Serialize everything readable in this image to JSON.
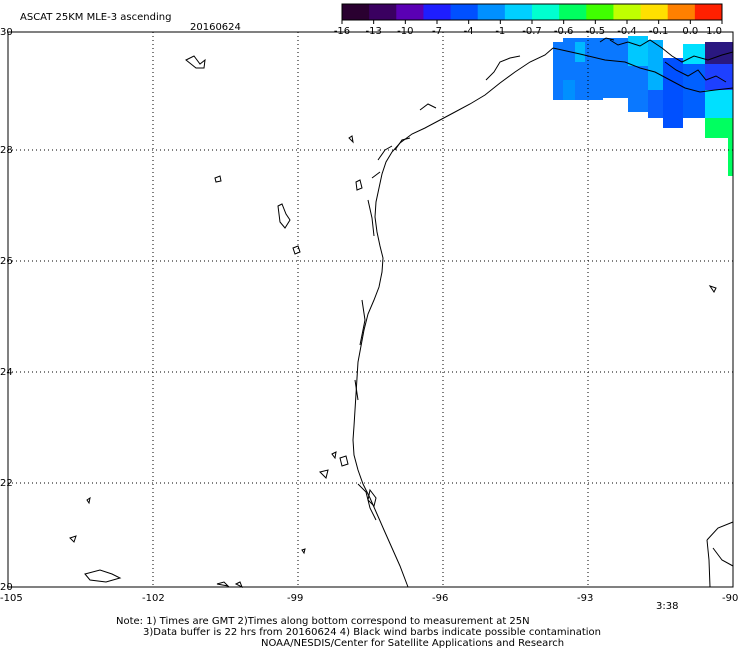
{
  "header": {
    "title": "ASCAT 25KM MLE-3 ascending",
    "date": "20160624"
  },
  "colorbar": {
    "labels": [
      "-16",
      "-13",
      "-10",
      "-7",
      "-4",
      "-1",
      "-0.7",
      "-0.6",
      "-0.5",
      "-0.4",
      "-0.1",
      "0.0",
      "1.0"
    ],
    "colors": [
      "#2a0030",
      "#3a0060",
      "#5a00b4",
      "#1e1eff",
      "#0050ff",
      "#0090ff",
      "#00d0ff",
      "#00ffd0",
      "#00ff60",
      "#40ff00",
      "#c0ff00",
      "#ffe000",
      "#ff8000",
      "#ff2000"
    ]
  },
  "map": {
    "lon_ticks": [
      "-105",
      "-102",
      "-99",
      "-96",
      "-93",
      "-90"
    ],
    "lat_ticks": [
      "30",
      "28",
      "26",
      "24",
      "22",
      "20"
    ],
    "lon_range": [
      -105,
      -90
    ],
    "lat_range": [
      20,
      30
    ],
    "grid": true,
    "time_label": "3:38",
    "time_color": "#c03000"
  },
  "notes": {
    "line1": "Note: 1) Times are GMT 2)Times along bottom correspond to measurement at 25N",
    "line2": "3)Data buffer is 22 hrs from 20160624 4) Black wind barbs indicate possible contamination",
    "line3": "NOAA/NESDIS/Center for Satellite Applications and Research"
  }
}
